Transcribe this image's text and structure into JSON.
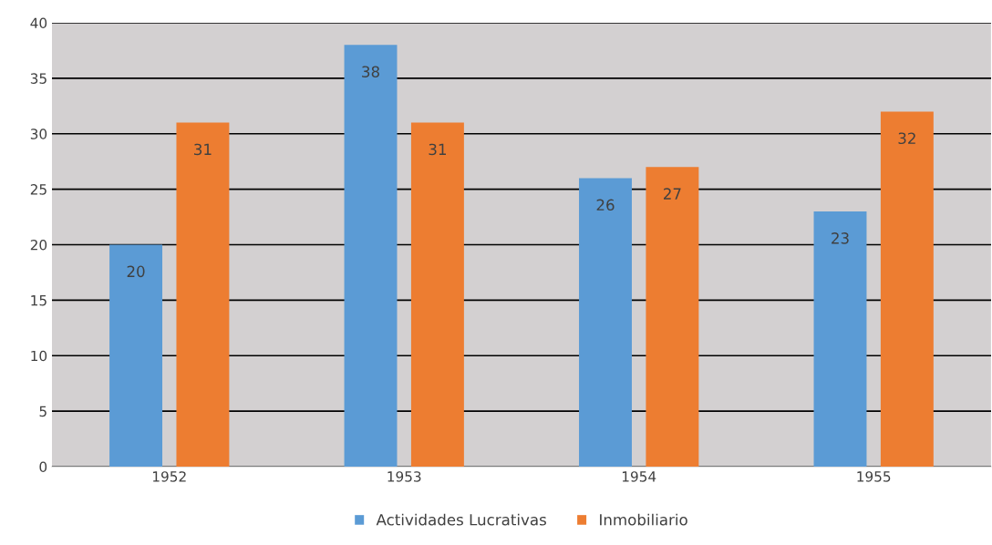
{
  "chart_data": {
    "type": "bar",
    "categories": [
      "1952",
      "1953",
      "1954",
      "1955"
    ],
    "series": [
      {
        "name": "Actividades Lucrativas",
        "color": "#5b9bd5",
        "values": [
          20,
          38,
          26,
          23
        ]
      },
      {
        "name": "Inmobiliario",
        "color": "#ed7d31",
        "values": [
          31,
          31,
          27,
          32
        ]
      }
    ],
    "ylim": [
      0,
      40
    ],
    "yticks": [
      0,
      5,
      10,
      15,
      20,
      25,
      30,
      35,
      40
    ],
    "grid": "y",
    "legend": "bottom",
    "data_labels": true
  }
}
